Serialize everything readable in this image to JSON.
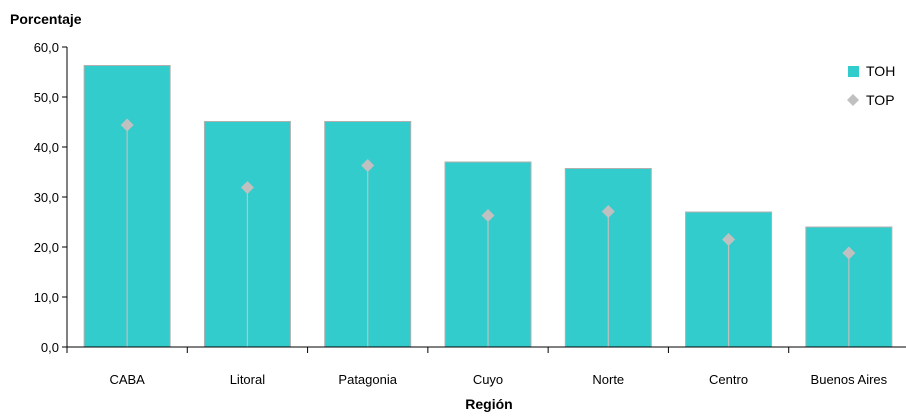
{
  "chart_data": {
    "type": "bar",
    "xlabel": "Región",
    "ylabel": "Porcentaje",
    "categories": [
      "CABA",
      "Litoral",
      "Patagonia",
      "Cuyo",
      "Norte",
      "Centro",
      "Buenos Aires"
    ],
    "ylim": [
      0,
      60
    ],
    "yticks": [
      "0,0",
      "10,0",
      "20,0",
      "30,0",
      "40,0",
      "50,0",
      "60,0"
    ],
    "grid": false,
    "legend_position": "top-right",
    "series": [
      {
        "name": "TOH",
        "mark": "bar",
        "color": "#33CCCC",
        "values": [
          56.3,
          45.1,
          45.1,
          37.0,
          35.7,
          27.0,
          24.0
        ]
      },
      {
        "name": "TOP",
        "mark": "diamond-with-stem",
        "color": "#C0C0C0",
        "values": [
          44.4,
          31.9,
          36.3,
          26.3,
          27.1,
          21.5,
          18.8
        ]
      }
    ]
  }
}
